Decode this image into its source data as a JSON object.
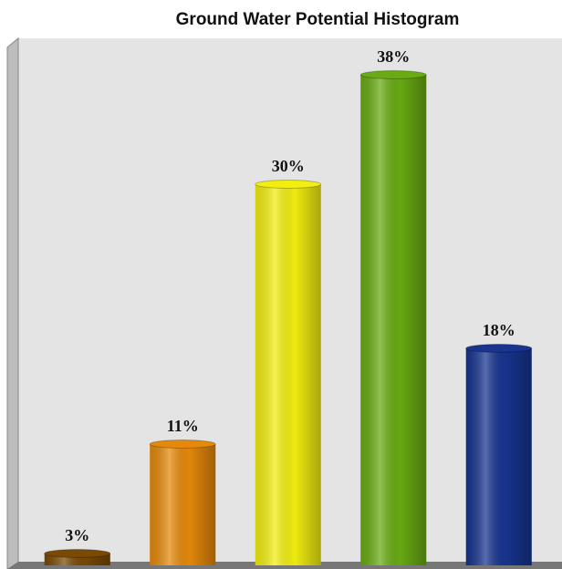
{
  "chart_data": {
    "type": "bar",
    "title": "Ground Water Potential Histogram",
    "values": [
      3,
      11,
      30,
      38,
      18
    ],
    "value_labels": [
      "3%",
      "11%",
      "30%",
      "38%",
      "18%"
    ],
    "colors": [
      "#7a4a05",
      "#e5890a",
      "#f2ee10",
      "#68ab12",
      "#17348f"
    ],
    "ylim": [
      0,
      40
    ]
  }
}
